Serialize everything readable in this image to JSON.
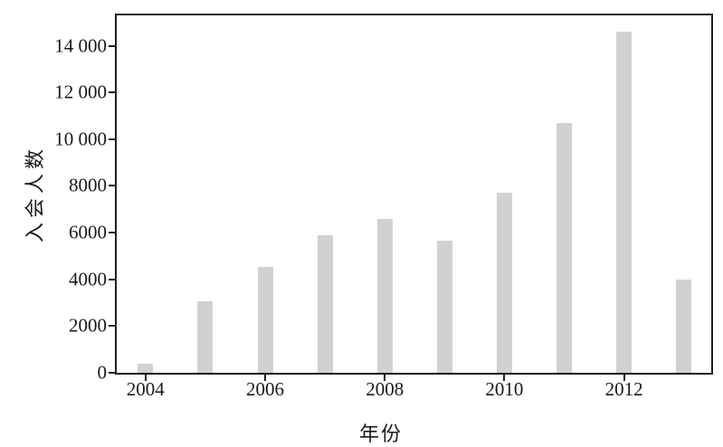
{
  "chart_data": {
    "type": "bar",
    "title": "",
    "xlabel": "年份",
    "ylabel": "入会人数",
    "categories": [
      "2004",
      "2005",
      "2006",
      "2007",
      "2008",
      "2009",
      "2010",
      "2011",
      "2012",
      "2013"
    ],
    "values": [
      390,
      3050,
      4550,
      5900,
      6600,
      5650,
      7700,
      10700,
      14600,
      4000
    ],
    "ylim": [
      0,
      15300
    ],
    "yticks": {
      "values": [
        0,
        2000,
        4000,
        6000,
        8000,
        10000,
        12000,
        14000
      ],
      "labels": [
        "0",
        "2000",
        "4000",
        "6000",
        "8000",
        "10 000",
        "12 000",
        "14 000"
      ]
    },
    "xticks": {
      "values": [
        2004,
        2006,
        2008,
        2010,
        2012
      ],
      "labels": [
        "2004",
        "2006",
        "2008",
        "2010",
        "2012"
      ]
    },
    "bar_color": "#d1d1d1",
    "axis_color": "#1f1f1f",
    "grid": false,
    "legend": false
  }
}
